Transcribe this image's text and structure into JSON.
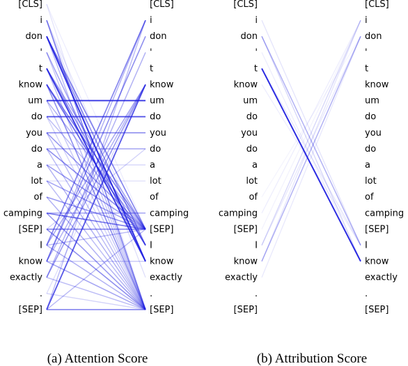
{
  "tokens": [
    "[CLS]",
    "i",
    "don",
    "'",
    "t",
    "know",
    "um",
    "do",
    "you",
    "do",
    "a",
    "lot",
    "of",
    "camping",
    "[SEP]",
    "I",
    "know",
    "exactly",
    ".",
    "[SEP]"
  ],
  "line_color": "#1f1fe0",
  "panels": [
    {
      "caption": "(a) Attention Score",
      "links": [
        [
          1,
          19,
          0.55
        ],
        [
          1,
          17,
          0.15
        ],
        [
          1,
          15,
          0.12
        ],
        [
          2,
          16,
          0.9
        ],
        [
          2,
          15,
          0.5
        ],
        [
          2,
          14,
          0.55
        ],
        [
          2,
          19,
          0.3
        ],
        [
          3,
          19,
          0.25
        ],
        [
          3,
          16,
          0.4
        ],
        [
          4,
          16,
          0.85
        ],
        [
          4,
          15,
          0.5
        ],
        [
          4,
          14,
          0.4
        ],
        [
          4,
          19,
          0.3
        ],
        [
          5,
          15,
          0.65
        ],
        [
          5,
          14,
          0.55
        ],
        [
          5,
          19,
          0.5
        ],
        [
          6,
          6,
          0.9
        ],
        [
          6,
          14,
          0.35
        ],
        [
          6,
          19,
          0.25
        ],
        [
          7,
          7,
          0.75
        ],
        [
          7,
          14,
          0.3
        ],
        [
          7,
          19,
          0.2
        ],
        [
          8,
          8,
          0.5
        ],
        [
          8,
          14,
          0.45
        ],
        [
          8,
          19,
          0.3
        ],
        [
          9,
          9,
          0.4
        ],
        [
          9,
          14,
          0.5
        ],
        [
          9,
          19,
          0.3
        ],
        [
          10,
          14,
          0.45
        ],
        [
          10,
          19,
          0.35
        ],
        [
          10,
          10,
          0.2
        ],
        [
          11,
          14,
          0.4
        ],
        [
          11,
          19,
          0.3
        ],
        [
          11,
          11,
          0.15
        ],
        [
          12,
          14,
          0.45
        ],
        [
          12,
          19,
          0.35
        ],
        [
          13,
          13,
          0.4
        ],
        [
          13,
          14,
          0.6
        ],
        [
          13,
          19,
          0.45
        ],
        [
          14,
          14,
          0.55
        ],
        [
          14,
          19,
          0.5
        ],
        [
          14,
          9,
          0.2
        ],
        [
          15,
          1,
          0.55
        ],
        [
          15,
          5,
          0.4
        ],
        [
          15,
          19,
          0.35
        ],
        [
          15,
          14,
          0.3
        ],
        [
          16,
          2,
          0.5
        ],
        [
          16,
          1,
          0.35
        ],
        [
          16,
          5,
          0.35
        ],
        [
          16,
          19,
          0.4
        ],
        [
          16,
          16,
          0.25
        ],
        [
          17,
          5,
          0.45
        ],
        [
          17,
          3,
          0.35
        ],
        [
          17,
          19,
          0.3
        ],
        [
          18,
          19,
          0.2
        ],
        [
          18,
          5,
          0.15
        ],
        [
          19,
          5,
          0.75
        ],
        [
          19,
          1,
          0.3
        ],
        [
          19,
          19,
          0.55
        ],
        [
          19,
          14,
          0.3
        ],
        [
          0,
          19,
          0.12
        ],
        [
          0,
          14,
          0.08
        ]
      ]
    },
    {
      "caption": "(b) Attribution Score",
      "links": [
        [
          4,
          16,
          0.95
        ],
        [
          2,
          15,
          0.35
        ],
        [
          1,
          15,
          0.12
        ],
        [
          2,
          16,
          0.18
        ],
        [
          16,
          2,
          0.35
        ],
        [
          15,
          1,
          0.18
        ],
        [
          16,
          1,
          0.12
        ],
        [
          17,
          2,
          0.1
        ],
        [
          13,
          1,
          0.08
        ],
        [
          15,
          2,
          0.1
        ],
        [
          5,
          15,
          0.08
        ],
        [
          3,
          16,
          0.08
        ],
        [
          4,
          15,
          0.12
        ],
        [
          14,
          1,
          0.06
        ],
        [
          12,
          2,
          0.05
        ]
      ]
    }
  ]
}
